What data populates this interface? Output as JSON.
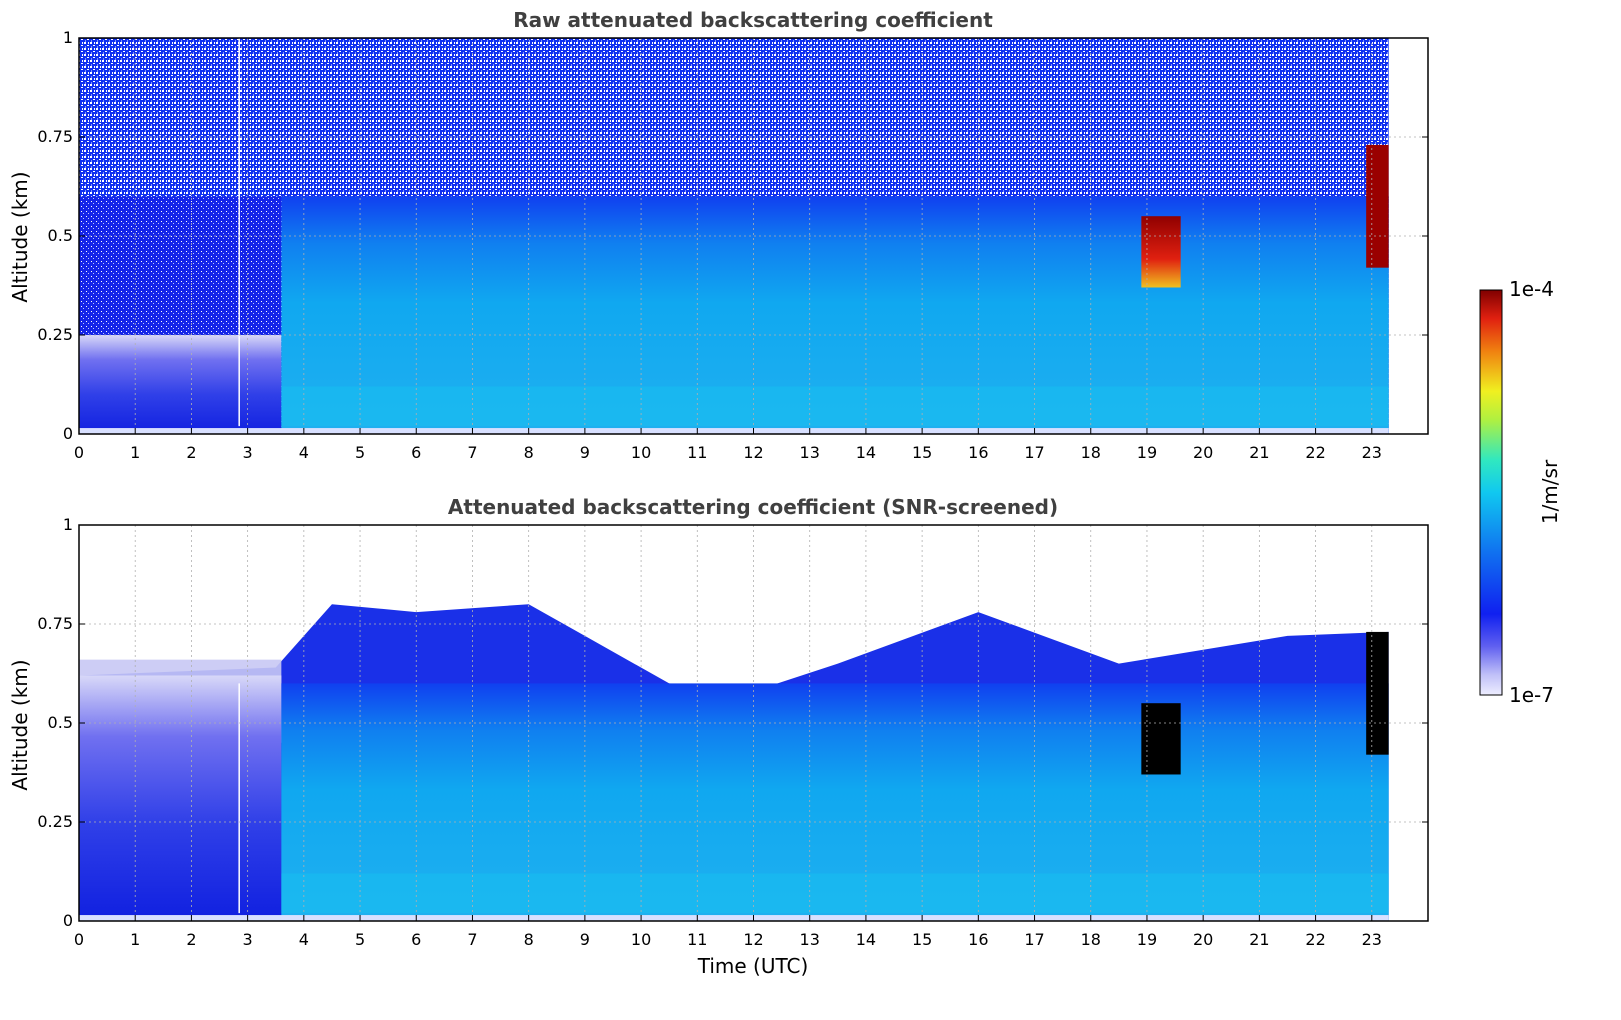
{
  "colors": {
    "low": "#e8e8ff",
    "blue": "#1020e8",
    "light_blue": "#10a0f0",
    "cyan": "#20d8f0",
    "yellow": "#f0f020",
    "red": "#e02010",
    "dark_red": "#800000",
    "saturated": "#000000",
    "grid": "#b0b0b0",
    "title": "#404040"
  },
  "chart_data": [
    {
      "type": "heatmap",
      "title": "Raw attenuated backscattering coefficient",
      "xlabel": "",
      "ylabel": "Altitude (km)",
      "xlim": [
        0,
        24
      ],
      "ylim": [
        0,
        1
      ],
      "xticks": [
        "0",
        "1",
        "2",
        "3",
        "4",
        "5",
        "6",
        "7",
        "8",
        "9",
        "10",
        "11",
        "12",
        "13",
        "14",
        "15",
        "16",
        "17",
        "18",
        "19",
        "20",
        "21",
        "22",
        "23"
      ],
      "yticks": [
        "0",
        "0.25",
        "0.5",
        "0.75",
        "1"
      ],
      "grid": true,
      "data_end_time": 23.3,
      "regions": [
        {
          "name": "surface-noise-layer",
          "t0": 0,
          "t1": 23.3,
          "z0": 0,
          "z1": 1.0,
          "level": "noisy-blue"
        },
        {
          "name": "morning-boundary-layer",
          "t0": 0,
          "t1": 3.6,
          "z0": 0,
          "z1": 0.25,
          "level": "blue"
        },
        {
          "name": "boundary-layer-aerosol",
          "t0": 3.6,
          "t1": 23.3,
          "z0": 0,
          "z1": 0.6,
          "level": "light-blue"
        },
        {
          "name": "cloud-19h",
          "t0": 18.9,
          "t1": 19.6,
          "z0": 0.37,
          "z1": 0.55,
          "level": "red"
        },
        {
          "name": "cloud-23h",
          "t0": 22.9,
          "t1": 23.3,
          "z0": 0.42,
          "z1": 0.73,
          "level": "dark-red"
        }
      ]
    },
    {
      "type": "heatmap",
      "title": "Attenuated backscattering coefficient (SNR-screened)",
      "xlabel": "Time (UTC)",
      "ylabel": "Altitude (km)",
      "xlim": [
        0,
        24
      ],
      "ylim": [
        0,
        1
      ],
      "xticks": [
        "0",
        "1",
        "2",
        "3",
        "4",
        "5",
        "6",
        "7",
        "8",
        "9",
        "10",
        "11",
        "12",
        "13",
        "14",
        "15",
        "16",
        "17",
        "18",
        "19",
        "20",
        "21",
        "22",
        "23"
      ],
      "yticks": [
        "0",
        "0.25",
        "0.5",
        "0.75",
        "1"
      ],
      "grid": true,
      "data_end_time": 23.3,
      "top_of_layer_km": [
        {
          "t": 0,
          "z": 0.62
        },
        {
          "t": 3.5,
          "z": 0.64
        },
        {
          "t": 4.5,
          "z": 0.8
        },
        {
          "t": 6,
          "z": 0.78
        },
        {
          "t": 8,
          "z": 0.8
        },
        {
          "t": 9,
          "z": 0.72
        },
        {
          "t": 10.5,
          "z": 0.6
        },
        {
          "t": 12,
          "z": 0.58
        },
        {
          "t": 13.5,
          "z": 0.65
        },
        {
          "t": 16,
          "z": 0.78
        },
        {
          "t": 18.5,
          "z": 0.65
        },
        {
          "t": 21.5,
          "z": 0.72
        },
        {
          "t": 23.3,
          "z": 0.73
        }
      ],
      "regions": [
        {
          "name": "morning-boundary-layer",
          "t0": 0,
          "t1": 3.6,
          "z0": 0,
          "z1": 0.62,
          "level": "blue"
        },
        {
          "name": "boundary-layer-aerosol",
          "t0": 3.6,
          "t1": 23.3,
          "z0": 0,
          "z1": 0.6,
          "level": "light-blue"
        },
        {
          "name": "cloud-19h",
          "t0": 18.9,
          "t1": 19.6,
          "z0": 0.37,
          "z1": 0.55,
          "level": "saturated"
        },
        {
          "name": "cloud-23h",
          "t0": 22.9,
          "t1": 23.3,
          "z0": 0.42,
          "z1": 0.73,
          "level": "saturated"
        }
      ]
    }
  ],
  "colorbar": {
    "label": "1/m/sr",
    "max_label": "1e-4",
    "min_label": "1e-7",
    "scale": "log",
    "range": [
      1e-07,
      0.0001
    ]
  }
}
